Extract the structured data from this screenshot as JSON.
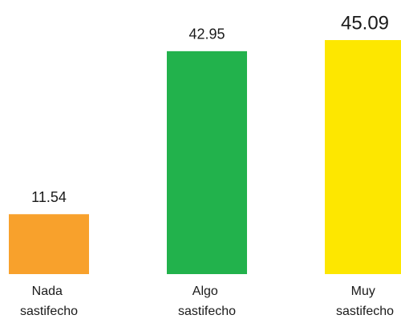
{
  "chart_data": {
    "type": "bar",
    "categories": [
      "Nada sastifecho",
      "Algo sastifecho",
      "Muy sastifecho"
    ],
    "values": [
      11.54,
      42.95,
      45.09
    ],
    "colors": [
      "#f8a12c",
      "#22b24c",
      "#fde700"
    ]
  }
}
